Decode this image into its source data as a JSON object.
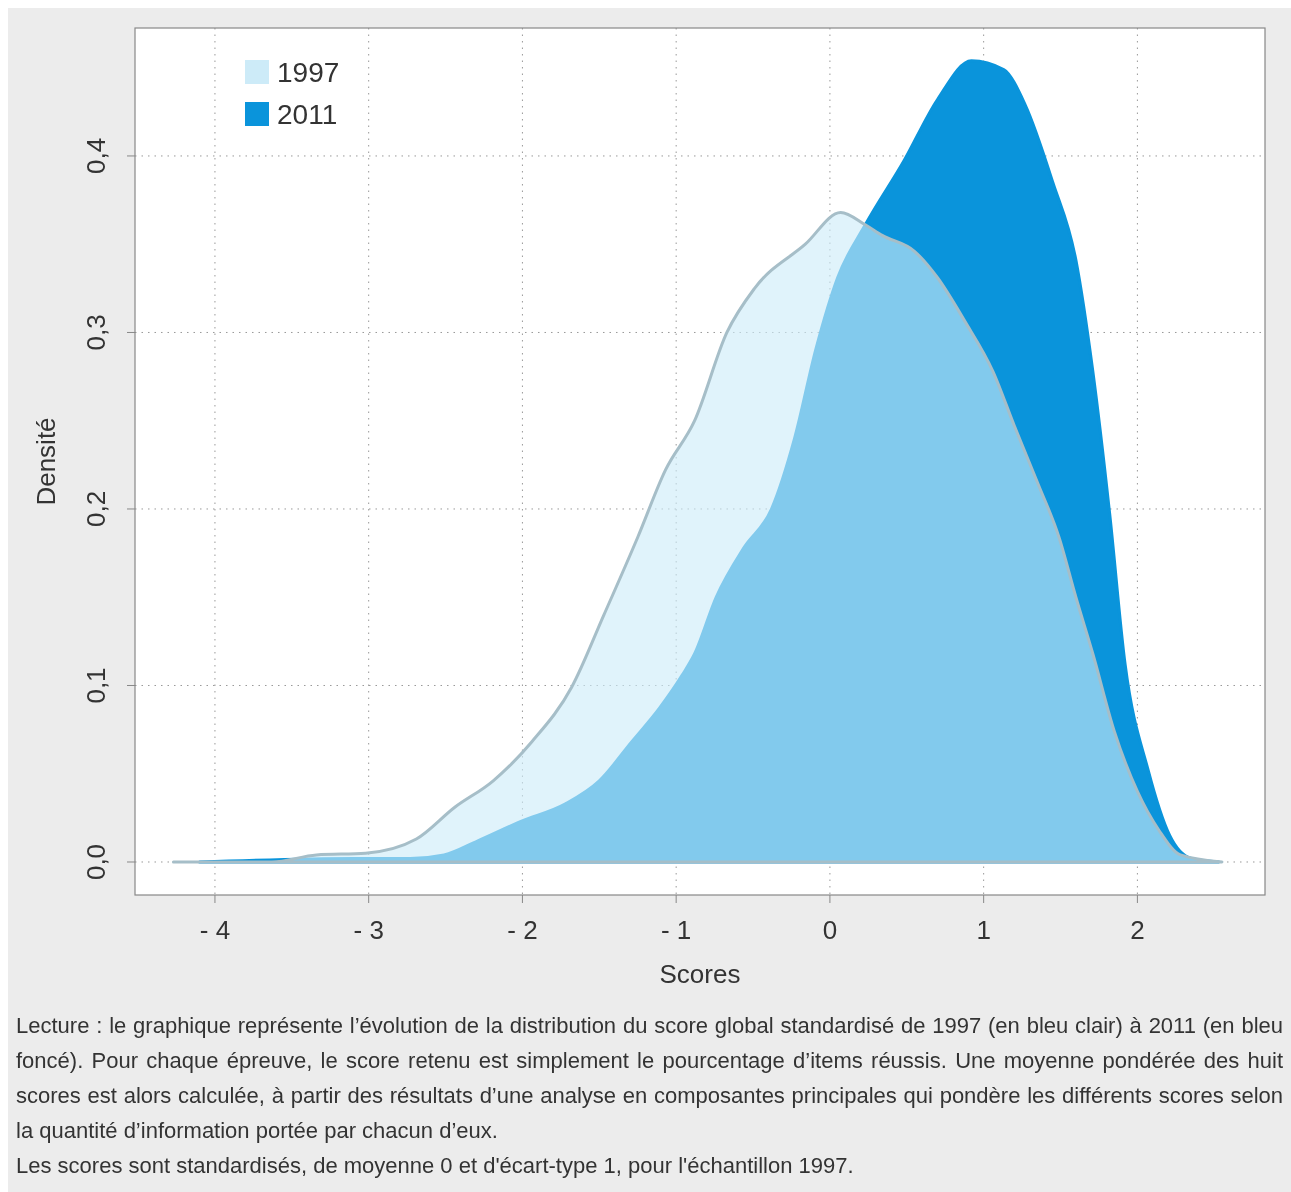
{
  "chart_data": {
    "type": "area",
    "xlabel": "Scores",
    "ylabel": "Densité",
    "xlim": [
      -4.52,
      2.83
    ],
    "ylim": [
      -0.0187,
      0.4725
    ],
    "xticks": [
      {
        "value": -4,
        "label": "- 4"
      },
      {
        "value": -3,
        "label": "- 3"
      },
      {
        "value": -2,
        "label": "- 2"
      },
      {
        "value": -1,
        "label": "- 1"
      },
      0,
      1,
      2
    ],
    "yticks": [
      {
        "value": 0,
        "label": "0,0"
      },
      {
        "value": 0.1,
        "label": "0,1"
      },
      {
        "value": 0.2,
        "label": "0,2"
      },
      {
        "value": 0.3,
        "label": "0,3"
      },
      {
        "value": 0.4,
        "label": "0,4"
      }
    ],
    "grid": true,
    "legend": "top left",
    "series": [
      {
        "name": "2011",
        "color": "#0a94db",
        "x": [
          -4.1,
          -3.09,
          -2.73,
          -2.51,
          -2.29,
          -2.01,
          -1.72,
          -1.5,
          -1.29,
          -1.11,
          -0.96,
          -0.88,
          -0.74,
          -0.56,
          -0.38,
          -0.23,
          -0.09,
          0.05,
          0.23,
          0.48,
          0.7,
          0.92,
          1.13,
          1.27,
          1.45,
          1.6,
          1.71,
          1.82,
          1.92,
          2.07,
          2.21,
          2.35,
          2.53
        ],
        "values": [
          0,
          0.002,
          0.002,
          0.004,
          0.012,
          0.023,
          0.033,
          0.046,
          0.068,
          0.087,
          0.106,
          0.118,
          0.15,
          0.178,
          0.2,
          0.24,
          0.291,
          0.331,
          0.361,
          0.397,
          0.432,
          0.454,
          0.449,
          0.429,
          0.385,
          0.341,
          0.278,
          0.197,
          0.112,
          0.052,
          0.015,
          0.002,
          0
        ]
      },
      {
        "name": "1997",
        "color": "#cdebf8",
        "x": [
          -4.27,
          -3.63,
          -3.34,
          -3.02,
          -2.69,
          -2.44,
          -2.19,
          -1.94,
          -1.68,
          -1.47,
          -1.25,
          -1.07,
          -0.88,
          -0.67,
          -0.49,
          -0.16,
          0.07,
          0.23,
          0.34,
          0.55,
          0.7,
          0.88,
          1.06,
          1.2,
          1.35,
          1.49,
          1.6,
          1.71,
          1.85,
          2.0,
          2.14,
          2.28,
          2.55
        ],
        "values": [
          0,
          0,
          0.004,
          0.005,
          0.013,
          0.031,
          0.046,
          0.068,
          0.099,
          0.14,
          0.184,
          0.222,
          0.25,
          0.3,
          0.325,
          0.35,
          0.368,
          0.361,
          0.355,
          0.346,
          0.331,
          0.306,
          0.278,
          0.247,
          0.215,
          0.184,
          0.15,
          0.118,
          0.074,
          0.04,
          0.018,
          0.004,
          0
        ]
      }
    ],
    "annotations": [
      "Lecture : le graphique représente l’évolution de la distribution du score global standardisé de 1997 (en bleu clair) à 2011 (en bleu foncé). Pour chaque épreuve, le score retenu est simplement le pourcentage d’items réussis. Une moyenne pondérée des huit scores est alors calculée, à partir des résultats d’une analyse en composantes principales qui pondère les différents scores selon la quantité d’information portée par chacun d’eux.",
      "Les scores sont standardisés, de moyenne 0 et d'écart-type 1, pour l'échantillon 1997."
    ]
  }
}
